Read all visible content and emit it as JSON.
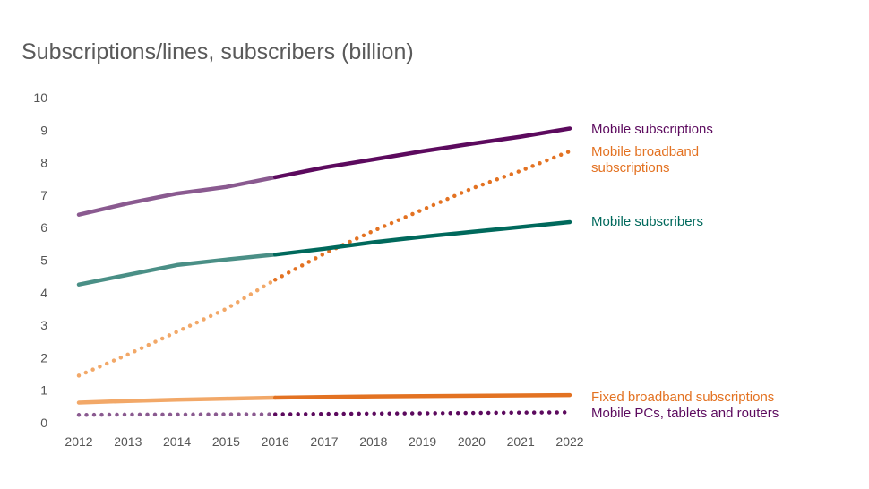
{
  "chart_data": {
    "type": "line",
    "title": "Subscriptions/lines, subscribers (billion)",
    "xlabel": "",
    "ylabel": "",
    "x": [
      2012,
      2013,
      2014,
      2015,
      2016,
      2017,
      2018,
      2019,
      2020,
      2021,
      2022
    ],
    "x_tick_labels": [
      "2012",
      "2013",
      "2014",
      "2015",
      "2016",
      "2017",
      "2018",
      "2019",
      "2020",
      "2021",
      "2022"
    ],
    "y_ticks": [
      0,
      1,
      2,
      3,
      4,
      5,
      6,
      7,
      8,
      9,
      10
    ],
    "y_tick_labels": [
      "0",
      "1",
      "2",
      "3",
      "4",
      "5",
      "6",
      "7",
      "8",
      "9",
      "10"
    ],
    "ylim": [
      0,
      10
    ],
    "xlim": [
      2012,
      2022
    ],
    "grid": false,
    "legend": "right-end labels",
    "forecast_start": 2016,
    "series": [
      {
        "name": "Mobile subscriptions",
        "label_lines": [
          "Mobile subscriptions"
        ],
        "style": "solid",
        "color": "#5c0a5e",
        "history_color": "#8a5a90",
        "values": [
          6.4,
          6.75,
          7.05,
          7.25,
          7.55,
          7.85,
          8.1,
          8.35,
          8.58,
          8.8,
          9.05
        ]
      },
      {
        "name": "Mobile broadband subscriptions",
        "label_lines": [
          "Mobile broadband",
          "subscriptions"
        ],
        "style": "dotted",
        "color": "#e37222",
        "history_color": "#f2a868",
        "values": [
          1.45,
          2.1,
          2.8,
          3.5,
          4.4,
          5.2,
          5.9,
          6.55,
          7.2,
          7.75,
          8.35
        ]
      },
      {
        "name": "Mobile subscribers",
        "label_lines": [
          "Mobile subscribers"
        ],
        "style": "solid",
        "color": "#00695c",
        "history_color": "#4a8f86",
        "values": [
          4.25,
          4.55,
          4.85,
          5.02,
          5.17,
          5.35,
          5.55,
          5.72,
          5.87,
          6.02,
          6.17
        ]
      },
      {
        "name": "Fixed broadband subscriptions",
        "label_lines": [
          "Fixed broadband subscriptions"
        ],
        "style": "solid",
        "color": "#e37222",
        "history_color": "#f2a868",
        "values": [
          0.62,
          0.67,
          0.71,
          0.74,
          0.77,
          0.79,
          0.81,
          0.82,
          0.83,
          0.84,
          0.85
        ]
      },
      {
        "name": "Mobile PCs, tablets and routers",
        "label_lines": [
          "Mobile PCs, tablets and routers"
        ],
        "style": "dotted",
        "color": "#5c0a5e",
        "history_color": "#8a5a90",
        "values": [
          0.24,
          0.25,
          0.25,
          0.26,
          0.26,
          0.27,
          0.28,
          0.29,
          0.3,
          0.31,
          0.32
        ]
      }
    ]
  }
}
